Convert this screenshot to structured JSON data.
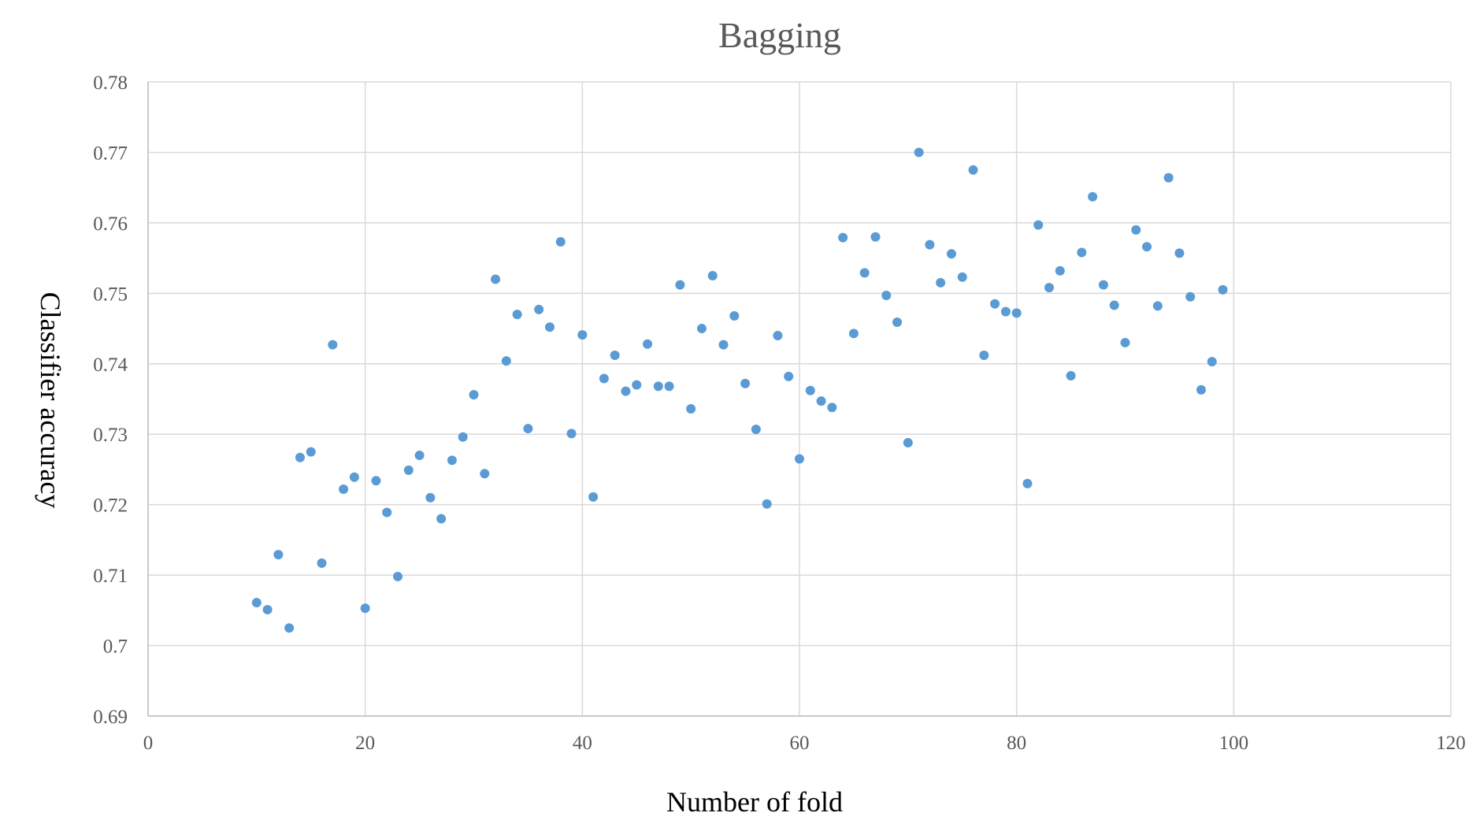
{
  "chart_data": {
    "type": "scatter",
    "title": "Bagging",
    "xlabel": "Number of fold",
    "ylabel": "Classifier accuracy",
    "xlim": [
      0,
      120
    ],
    "ylim": [
      0.69,
      0.78
    ],
    "x_ticks": [
      "0",
      "20",
      "40",
      "60",
      "80",
      "100",
      "120"
    ],
    "y_ticks": [
      "0.69",
      "0.7",
      "0.71",
      "0.72",
      "0.73",
      "0.74",
      "0.75",
      "0.76",
      "0.77",
      "0.78"
    ],
    "grid": true,
    "legend": "none",
    "marker_color": "#5b9bd5",
    "series": [
      {
        "points": [
          [
            10,
            0.7061
          ],
          [
            11,
            0.7051
          ],
          [
            12,
            0.7129
          ],
          [
            13,
            0.7025
          ],
          [
            14,
            0.7267
          ],
          [
            15,
            0.7275
          ],
          [
            16,
            0.7117
          ],
          [
            17,
            0.7427
          ],
          [
            18,
            0.7222
          ],
          [
            19,
            0.7239
          ],
          [
            20,
            0.7053
          ],
          [
            21,
            0.7234
          ],
          [
            22,
            0.7189
          ],
          [
            23,
            0.7098
          ],
          [
            24,
            0.7249
          ],
          [
            25,
            0.727
          ],
          [
            26,
            0.721
          ],
          [
            27,
            0.718
          ],
          [
            28,
            0.7263
          ],
          [
            29,
            0.7296
          ],
          [
            30,
            0.7356
          ],
          [
            31,
            0.7244
          ],
          [
            32,
            0.752
          ],
          [
            33,
            0.7404
          ],
          [
            34,
            0.747
          ],
          [
            35,
            0.7308
          ],
          [
            36,
            0.7477
          ],
          [
            37,
            0.7452
          ],
          [
            38,
            0.7573
          ],
          [
            39,
            0.7301
          ],
          [
            40,
            0.7441
          ],
          [
            41,
            0.7211
          ],
          [
            42,
            0.7379
          ],
          [
            43,
            0.7412
          ],
          [
            44,
            0.7361
          ],
          [
            45,
            0.737
          ],
          [
            46,
            0.7428
          ],
          [
            47,
            0.7368
          ],
          [
            48,
            0.7368
          ],
          [
            49,
            0.7512
          ],
          [
            50,
            0.7336
          ],
          [
            51,
            0.745
          ],
          [
            52,
            0.7525
          ],
          [
            53,
            0.7427
          ],
          [
            54,
            0.7468
          ],
          [
            55,
            0.7372
          ],
          [
            56,
            0.7307
          ],
          [
            57,
            0.7201
          ],
          [
            58,
            0.744
          ],
          [
            59,
            0.7382
          ],
          [
            60,
            0.7265
          ],
          [
            61,
            0.7362
          ],
          [
            62,
            0.7347
          ],
          [
            63,
            0.7338
          ],
          [
            64,
            0.7579
          ],
          [
            65,
            0.7443
          ],
          [
            66,
            0.7529
          ],
          [
            67,
            0.758
          ],
          [
            68,
            0.7497
          ],
          [
            69,
            0.7459
          ],
          [
            70,
            0.7288
          ],
          [
            71,
            0.77
          ],
          [
            72,
            0.7569
          ],
          [
            73,
            0.7515
          ],
          [
            74,
            0.7556
          ],
          [
            75,
            0.7523
          ],
          [
            76,
            0.7675
          ],
          [
            77,
            0.7412
          ],
          [
            78,
            0.7485
          ],
          [
            79,
            0.7474
          ],
          [
            80,
            0.7472
          ],
          [
            81,
            0.723
          ],
          [
            82,
            0.7597
          ],
          [
            83,
            0.7508
          ],
          [
            84,
            0.7532
          ],
          [
            85,
            0.7383
          ],
          [
            86,
            0.7558
          ],
          [
            87,
            0.7637
          ],
          [
            88,
            0.7512
          ],
          [
            89,
            0.7483
          ],
          [
            90,
            0.743
          ],
          [
            91,
            0.759
          ],
          [
            92,
            0.7566
          ],
          [
            93,
            0.7482
          ],
          [
            94,
            0.7664
          ],
          [
            95,
            0.7557
          ],
          [
            96,
            0.7495
          ],
          [
            97,
            0.7363
          ],
          [
            98,
            0.7403
          ],
          [
            99,
            0.7505
          ]
        ]
      }
    ]
  }
}
